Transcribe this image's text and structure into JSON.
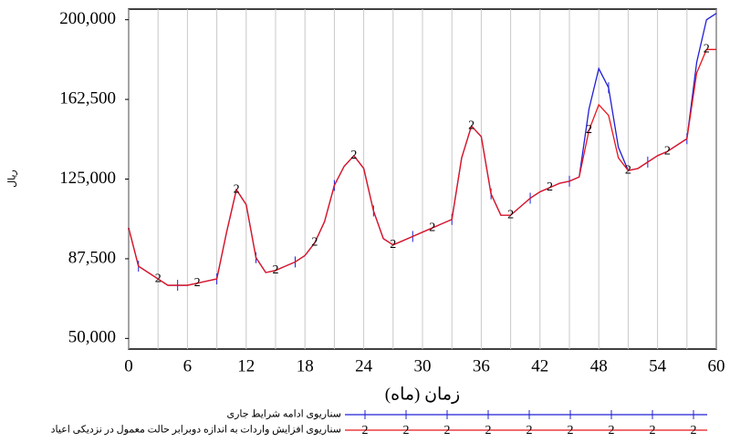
{
  "chart_data": {
    "type": "line",
    "x_label": "زمان (ماه)",
    "y_label": "ریال",
    "x": [
      0,
      1,
      2,
      3,
      4,
      5,
      6,
      7,
      8,
      9,
      10,
      11,
      12,
      13,
      14,
      15,
      16,
      17,
      18,
      19,
      20,
      21,
      22,
      23,
      24,
      25,
      26,
      27,
      28,
      29,
      30,
      31,
      32,
      33,
      34,
      35,
      36,
      37,
      38,
      39,
      40,
      41,
      42,
      43,
      44,
      45,
      46,
      47,
      48,
      49,
      50,
      51,
      52,
      53,
      54,
      55,
      56,
      57,
      58,
      59,
      60
    ],
    "series": [
      {
        "name": "سناریوی ادامه شرایط جاری",
        "color": "#1f1fd6",
        "marker": "|",
        "values": [
          102000,
          84000,
          81000,
          78000,
          75000,
          75000,
          75000,
          76000,
          77000,
          78000,
          100000,
          120000,
          113000,
          88000,
          81000,
          82000,
          84000,
          86000,
          89000,
          95000,
          105000,
          122000,
          131000,
          136000,
          130000,
          110000,
          97000,
          94000,
          96000,
          98000,
          100000,
          102000,
          104000,
          106000,
          135000,
          150000,
          145000,
          118000,
          108000,
          108000,
          112000,
          116000,
          119000,
          121000,
          123000,
          124000,
          126000,
          158000,
          177000,
          168000,
          140000,
          129000,
          130000,
          133000,
          136000,
          138000,
          141000,
          144000,
          180000,
          200000,
          203000
        ]
      },
      {
        "name": "سناریوی افزایش واردات به اندازه دوبرابر حالت معمول در نزدیکی اعیاد",
        "color": "#e8151b",
        "marker": "2",
        "values": [
          102000,
          84000,
          81000,
          78000,
          75000,
          75000,
          75000,
          76000,
          77000,
          78000,
          100000,
          120000,
          113000,
          88000,
          81000,
          82000,
          84000,
          86000,
          89000,
          95000,
          105000,
          122000,
          131000,
          136000,
          130000,
          110000,
          97000,
          94000,
          96000,
          98000,
          100000,
          102000,
          104000,
          106000,
          135000,
          150000,
          145000,
          118000,
          108000,
          108000,
          112000,
          116000,
          119000,
          121000,
          123000,
          124000,
          126000,
          148000,
          160000,
          155000,
          135000,
          129000,
          130000,
          133000,
          136000,
          138000,
          141000,
          144000,
          175000,
          186000,
          186000
        ]
      }
    ],
    "xlim": [
      0,
      60
    ],
    "xticks": [
      0,
      6,
      12,
      18,
      24,
      30,
      36,
      42,
      48,
      54,
      60
    ],
    "ylim": [
      45000,
      205000
    ],
    "yticks": [
      {
        "value": 50000,
        "label": "50,000"
      },
      {
        "value": 87500,
        "label": "87,500"
      },
      {
        "value": 125000,
        "label": "125,000"
      },
      {
        "value": 162500,
        "label": "162,500"
      },
      {
        "value": 200000,
        "label": "200,000"
      }
    ],
    "grid": true
  }
}
